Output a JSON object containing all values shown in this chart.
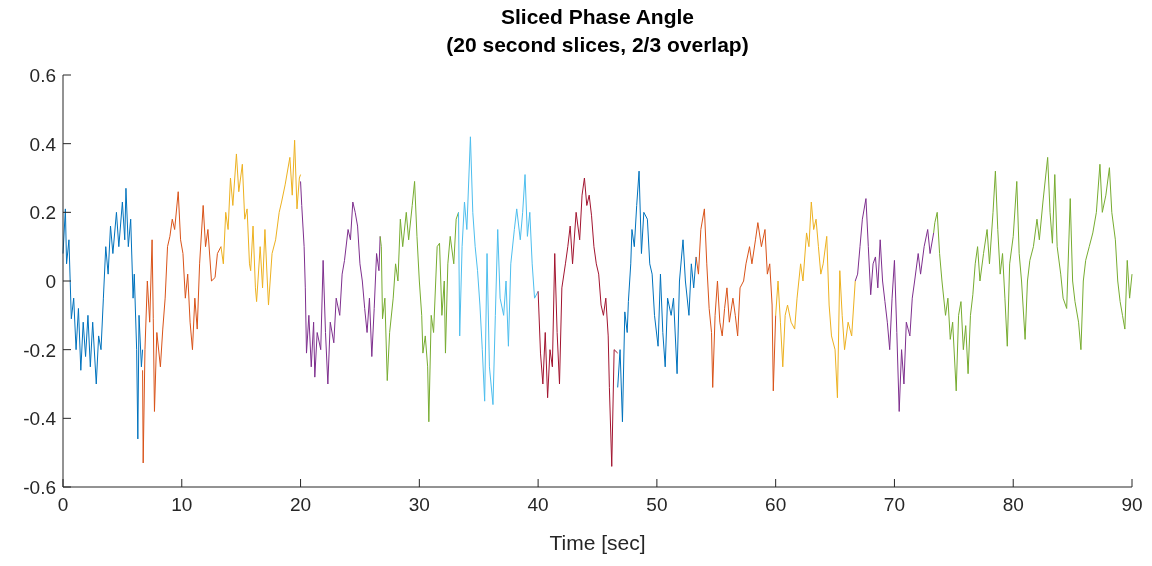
{
  "chart_data": {
    "type": "line",
    "title": "Sliced Phase Angle",
    "subtitle": "(20 second slices, 2/3 overlap)",
    "xlabel": "Time [sec]",
    "xlim": [
      0,
      90
    ],
    "xticks": [
      0,
      10,
      20,
      30,
      40,
      50,
      60,
      70,
      80,
      90
    ],
    "ylim": [
      -0.6,
      0.6
    ],
    "yticks": [
      -0.6,
      -0.4,
      -0.2,
      0,
      0.2,
      0.4,
      0.6
    ],
    "grid": false,
    "series": [
      {
        "color": "#0072bd",
        "x": [
          0,
          0.2,
          0.3,
          0.5,
          0.7,
          0.9,
          1.1,
          1.3,
          1.5,
          1.7,
          1.9,
          2.1,
          2.3,
          2.5,
          2.8,
          3.0,
          3.2,
          3.4,
          3.6,
          3.8,
          4.0,
          4.2,
          4.5,
          4.7,
          5.0,
          5.2,
          5.3,
          5.5,
          5.7,
          5.9,
          6.0,
          6.2,
          6.3,
          6.4,
          6.6,
          6.7
        ],
        "values": [
          0.08,
          0.21,
          0.05,
          0.12,
          -0.11,
          -0.05,
          -0.2,
          -0.08,
          -0.26,
          -0.12,
          -0.22,
          -0.1,
          -0.25,
          -0.12,
          -0.3,
          -0.16,
          -0.2,
          -0.05,
          0.1,
          0.02,
          0.16,
          0.08,
          0.2,
          0.1,
          0.23,
          0.12,
          0.27,
          0.1,
          0.18,
          -0.05,
          0.02,
          -0.2,
          -0.46,
          -0.1,
          -0.25,
          -0.2
        ]
      },
      {
        "color": "#d95319",
        "x": [
          6.7,
          6.75,
          6.9,
          7.1,
          7.3,
          7.5,
          7.6,
          7.7,
          7.9,
          8.2,
          8.4,
          8.6,
          8.8,
          9.0,
          9.2,
          9.4,
          9.7,
          9.9,
          10.1,
          10.3,
          10.5,
          10.7,
          10.9,
          11.1,
          11.3,
          11.5,
          11.8,
          12.0,
          12.2,
          12.5,
          12.8,
          13.0,
          13.3
        ],
        "values": [
          -0.26,
          -0.53,
          -0.2,
          0.0,
          -0.12,
          0.12,
          -0.11,
          -0.38,
          -0.15,
          -0.25,
          -0.14,
          -0.05,
          0.1,
          0.13,
          0.18,
          0.15,
          0.26,
          0.12,
          0.08,
          -0.05,
          0.02,
          -0.12,
          -0.2,
          -0.05,
          -0.14,
          0.05,
          0.22,
          0.1,
          0.15,
          0.0,
          0.01,
          0.08,
          0.1
        ]
      },
      {
        "color": "#edb120",
        "x": [
          13.3,
          13.5,
          13.7,
          13.9,
          14.1,
          14.3,
          14.6,
          14.8,
          15.1,
          15.3,
          15.5,
          15.7,
          15.8,
          16.0,
          16.2,
          16.3,
          16.6,
          16.8,
          17.0,
          17.2,
          17.3,
          17.6,
          17.9,
          18.2,
          18.4,
          18.7,
          19.1,
          19.3,
          19.5,
          19.7,
          19.9,
          20.0
        ],
        "values": [
          0.1,
          0.05,
          0.2,
          0.15,
          0.3,
          0.22,
          0.37,
          0.26,
          0.34,
          0.18,
          0.21,
          0.05,
          0.03,
          0.16,
          -0.02,
          -0.06,
          0.1,
          -0.02,
          0.15,
          0.0,
          -0.07,
          0.08,
          0.12,
          0.2,
          0.23,
          0.28,
          0.36,
          0.25,
          0.41,
          0.21,
          0.3,
          0.31
        ]
      },
      {
        "color": "#7e2f8e",
        "x": [
          20.0,
          20.1,
          20.3,
          20.4,
          20.5,
          20.7,
          20.9,
          21.1,
          21.2,
          21.4,
          21.7,
          21.9,
          22.1,
          22.3,
          22.5,
          22.8,
          23.0,
          23.3,
          23.5,
          23.7,
          24.0,
          24.2,
          24.4,
          24.6,
          24.8,
          25.0,
          25.2,
          25.4,
          25.6,
          25.8,
          26.0,
          26.2,
          26.4,
          26.6,
          26.7
        ],
        "values": [
          0.29,
          0.22,
          0.1,
          -0.02,
          -0.21,
          -0.1,
          -0.25,
          -0.12,
          -0.28,
          -0.15,
          -0.2,
          0.06,
          -0.15,
          -0.3,
          -0.12,
          -0.18,
          -0.05,
          -0.1,
          0.02,
          0.06,
          0.15,
          0.12,
          0.23,
          0.2,
          0.16,
          0.05,
          0.0,
          -0.08,
          -0.15,
          -0.05,
          -0.22,
          -0.08,
          0.08,
          0.03,
          0.13
        ]
      },
      {
        "color": "#77ac30",
        "x": [
          26.7,
          26.8,
          26.9,
          27.1,
          27.3,
          27.5,
          27.8,
          28.0,
          28.2,
          28.4,
          28.6,
          28.9,
          29.1,
          29.4,
          29.6,
          29.8,
          30.0,
          30.2,
          30.3,
          30.5,
          30.7,
          30.8,
          31.0,
          31.2,
          31.5,
          31.7,
          31.9,
          32.1,
          32.2,
          32.4,
          32.6,
          32.9,
          33.1,
          33.3
        ],
        "values": [
          0.13,
          0.1,
          -0.11,
          -0.05,
          -0.29,
          -0.15,
          -0.05,
          0.05,
          0.0,
          0.18,
          0.1,
          0.2,
          0.12,
          0.22,
          0.29,
          0.13,
          0.0,
          -0.1,
          -0.21,
          -0.16,
          -0.25,
          -0.41,
          -0.1,
          -0.15,
          0.1,
          0.11,
          -0.1,
          0.0,
          -0.21,
          0.05,
          0.13,
          0.05,
          0.18,
          0.2
        ]
      },
      {
        "color": "#4dbeee",
        "x": [
          33.3,
          33.4,
          33.6,
          33.8,
          34.0,
          34.3,
          34.5,
          34.7,
          34.9,
          35.1,
          35.3,
          35.5,
          35.7,
          35.9,
          36.2,
          36.4,
          36.6,
          36.8,
          37.1,
          37.3,
          37.5,
          37.7,
          38.0,
          38.2,
          38.5,
          38.7,
          38.9,
          39.1,
          39.3,
          39.5,
          39.7,
          40.0
        ],
        "values": [
          0.2,
          -0.16,
          0.1,
          0.23,
          0.15,
          0.42,
          0.2,
          0.1,
          0.03,
          -0.07,
          -0.2,
          -0.35,
          0.08,
          -0.25,
          -0.36,
          -0.1,
          0.15,
          -0.05,
          -0.1,
          0.0,
          -0.19,
          0.05,
          0.15,
          0.21,
          0.12,
          0.2,
          0.31,
          0.13,
          0.2,
          0.05,
          -0.05,
          -0.03
        ]
      },
      {
        "color": "#a2142f",
        "x": [
          40.0,
          40.2,
          40.4,
          40.6,
          40.8,
          41.0,
          41.2,
          41.4,
          41.6,
          41.8,
          42.0,
          42.3,
          42.5,
          42.7,
          42.9,
          43.2,
          43.5,
          43.7,
          43.9,
          44.1,
          44.3,
          44.5,
          44.7,
          44.9,
          45.1,
          45.3,
          45.5,
          45.7,
          45.9,
          46.0,
          46.2,
          46.4,
          46.7
        ],
        "values": [
          -0.03,
          -0.21,
          -0.3,
          -0.15,
          -0.34,
          -0.2,
          -0.25,
          0.08,
          -0.15,
          -0.3,
          -0.02,
          0.05,
          0.1,
          0.16,
          0.05,
          0.2,
          0.12,
          0.25,
          0.3,
          0.22,
          0.25,
          0.19,
          0.1,
          0.05,
          0.02,
          -0.07,
          -0.1,
          -0.05,
          -0.16,
          -0.31,
          -0.54,
          -0.2,
          -0.21
        ]
      },
      {
        "color": "#0072bd",
        "x": [
          46.7,
          46.9,
          47.1,
          47.3,
          47.5,
          47.6,
          47.8,
          47.9,
          48.1,
          48.3,
          48.5,
          48.7,
          48.9,
          49.2,
          49.4,
          49.6,
          49.8,
          50.1,
          50.3,
          50.5,
          50.7,
          50.9,
          51.2,
          51.4,
          51.7,
          51.9,
          52.2,
          52.4,
          52.7,
          52.9,
          53.1,
          53.3
        ],
        "values": [
          -0.31,
          -0.2,
          -0.41,
          -0.09,
          -0.15,
          -0.06,
          0.05,
          0.15,
          0.1,
          0.22,
          0.32,
          0.08,
          0.2,
          0.18,
          0.05,
          0.02,
          -0.1,
          -0.19,
          0.02,
          -0.15,
          -0.25,
          -0.05,
          -0.1,
          -0.05,
          -0.27,
          0.0,
          0.12,
          0.0,
          -0.1,
          0.05,
          -0.02,
          0.07
        ]
      },
      {
        "color": "#d95319",
        "x": [
          53.3,
          53.5,
          53.7,
          54.0,
          54.2,
          54.4,
          54.6,
          54.7,
          54.9,
          55.1,
          55.3,
          55.5,
          55.7,
          55.9,
          56.1,
          56.4,
          56.6,
          56.8,
          57.0,
          57.3,
          57.5,
          57.8,
          58.0,
          58.3,
          58.5,
          58.8,
          59.1,
          59.3,
          59.5,
          59.7,
          59.8,
          60.0
        ],
        "values": [
          0.07,
          0.02,
          0.15,
          0.21,
          0.05,
          -0.08,
          -0.15,
          -0.31,
          -0.1,
          0.0,
          -0.12,
          -0.16,
          -0.08,
          -0.02,
          -0.12,
          -0.05,
          -0.1,
          -0.16,
          -0.02,
          0.0,
          0.05,
          0.1,
          0.05,
          0.12,
          0.17,
          0.1,
          0.15,
          0.02,
          0.05,
          -0.07,
          -0.32,
          -0.1
        ]
      },
      {
        "color": "#edb120",
        "x": [
          60.0,
          60.2,
          60.4,
          60.6,
          60.8,
          61.0,
          61.3,
          61.6,
          61.8,
          62.1,
          62.3,
          62.6,
          62.8,
          63.0,
          63.2,
          63.4,
          63.6,
          63.8,
          64.0,
          64.3,
          64.5,
          64.7,
          65.0,
          65.2,
          65.4,
          65.6,
          65.8,
          66.1,
          66.4,
          66.7
        ],
        "values": [
          -0.1,
          0.0,
          -0.12,
          -0.25,
          -0.1,
          -0.07,
          -0.12,
          -0.14,
          -0.05,
          0.05,
          0.0,
          0.14,
          0.1,
          0.23,
          0.15,
          0.18,
          0.1,
          0.02,
          0.05,
          0.13,
          -0.07,
          -0.16,
          -0.2,
          -0.34,
          0.03,
          -0.1,
          -0.2,
          -0.12,
          -0.16,
          0.0
        ]
      },
      {
        "color": "#7e2f8e",
        "x": [
          66.7,
          66.9,
          67.1,
          67.3,
          67.6,
          67.8,
          68.0,
          68.2,
          68.4,
          68.6,
          68.8,
          69.0,
          69.2,
          69.4,
          69.6,
          69.8,
          70.0,
          70.2,
          70.4,
          70.6,
          70.8,
          71.0,
          71.3,
          71.5,
          71.7,
          72.0,
          72.2,
          72.5,
          72.8,
          73.0,
          73.3
        ],
        "values": [
          0.0,
          0.02,
          0.1,
          0.18,
          0.24,
          0.1,
          -0.04,
          0.05,
          0.07,
          -0.02,
          0.12,
          0.0,
          -0.06,
          -0.12,
          -0.2,
          -0.05,
          0.06,
          -0.15,
          -0.38,
          -0.2,
          -0.3,
          -0.12,
          -0.16,
          -0.05,
          0.0,
          0.08,
          0.02,
          0.1,
          0.15,
          0.08,
          0.14
        ]
      },
      {
        "color": "#77ac30",
        "x": [
          73.3,
          73.4,
          73.6,
          73.8,
          74.0,
          74.3,
          74.5,
          74.7,
          74.9,
          75.2,
          75.4,
          75.6,
          75.8,
          76.0,
          76.2,
          76.4,
          76.6,
          76.8,
          77.0,
          77.2,
          77.5,
          77.8,
          78.0,
          78.3,
          78.5,
          78.7,
          78.9,
          79.1,
          79.3,
          79.5,
          79.7,
          80.0,
          80.3,
          80.5,
          80.7,
          81.0,
          81.2,
          81.4,
          81.7,
          82.0,
          82.2,
          82.5,
          82.9,
          83.1,
          83.3,
          83.5,
          83.7,
          84.0,
          84.2,
          84.5,
          84.8,
          85.0,
          85.2,
          85.5,
          85.7,
          85.9,
          86.1,
          86.4,
          86.7,
          87.0,
          87.3,
          87.5,
          87.8,
          88.1,
          88.3,
          88.6,
          88.8,
          89.0,
          89.2,
          89.4,
          89.6,
          89.8,
          90.0
        ],
        "values": [
          0.14,
          0.17,
          0.2,
          0.08,
          0.0,
          -0.1,
          -0.05,
          -0.17,
          -0.12,
          -0.32,
          -0.1,
          -0.06,
          -0.2,
          -0.13,
          -0.27,
          -0.1,
          -0.04,
          0.05,
          0.1,
          0.0,
          0.08,
          0.15,
          0.05,
          0.2,
          0.32,
          0.15,
          0.02,
          0.08,
          -0.05,
          -0.19,
          0.05,
          0.13,
          0.29,
          0.08,
          0.0,
          -0.17,
          0.0,
          0.06,
          0.1,
          0.18,
          0.12,
          0.23,
          0.36,
          0.2,
          0.11,
          0.31,
          0.1,
          0.02,
          -0.05,
          -0.08,
          0.24,
          0.0,
          -0.06,
          -0.12,
          -0.2,
          0.0,
          0.06,
          0.1,
          0.14,
          0.2,
          0.34,
          0.2,
          0.25,
          0.33,
          0.2,
          0.12,
          0.0,
          -0.06,
          -0.1,
          -0.14,
          0.06,
          -0.05,
          0.02
        ]
      }
    ]
  }
}
